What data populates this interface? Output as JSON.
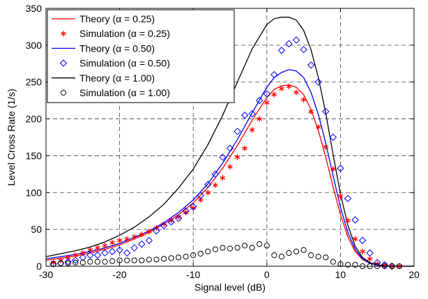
{
  "chart_data": {
    "type": "line",
    "title": "",
    "xlabel": "Signal level (dB)",
    "ylabel": "Level Cross Rate (1/s)",
    "xlim": [
      -30,
      20
    ],
    "ylim": [
      0,
      350
    ],
    "xticks": [
      -30,
      -20,
      -10,
      0,
      10,
      20
    ],
    "yticks": [
      0,
      50,
      100,
      150,
      200,
      250,
      300,
      350
    ],
    "grid": true,
    "legend_position": "top-left",
    "series": [
      {
        "name": "Theory (α = 0.25)",
        "kind": "line",
        "color": "#ff0000",
        "x": [
          -30,
          -28,
          -26,
          -24,
          -22,
          -20,
          -18,
          -16,
          -14,
          -12,
          -10,
          -8,
          -6,
          -4,
          -2,
          0,
          1,
          2,
          3,
          4,
          5,
          6,
          7,
          8,
          9,
          10,
          11,
          12,
          13,
          14,
          15,
          16,
          18,
          20
        ],
        "y": [
          8,
          11,
          14,
          18,
          23,
          29,
          37,
          46,
          57,
          70,
          86,
          107,
          133,
          164,
          198,
          229,
          240,
          245,
          246,
          243,
          233,
          213,
          184,
          148,
          108,
          70,
          40,
          20,
          9,
          4,
          1.5,
          0.5,
          0,
          0
        ]
      },
      {
        "name": "Simulation (α = 0.25)",
        "kind": "marker",
        "marker": "asterisk",
        "color": "#ff0000",
        "x": [
          -29,
          -28,
          -27,
          -26,
          -25,
          -24,
          -23,
          -22,
          -21,
          -20,
          -19,
          -18,
          -17,
          -16,
          -15,
          -14,
          -13,
          -12,
          -11,
          -10,
          -9,
          -8,
          -7,
          -6,
          -5,
          -4,
          -3,
          -2,
          -1,
          0,
          1,
          2,
          3,
          4,
          5,
          6,
          7,
          8,
          9,
          10,
          11,
          12,
          13,
          14,
          15,
          16,
          17,
          18
        ],
        "y": [
          5,
          8,
          12,
          15,
          18,
          22,
          25,
          28,
          32,
          35,
          37,
          40,
          43,
          47,
          52,
          57,
          62,
          67,
          73,
          79,
          90,
          100,
          110,
          120,
          135,
          148,
          160,
          185,
          200,
          222,
          233,
          241,
          244,
          236,
          226,
          210,
          189,
          162,
          132,
          95,
          62,
          37,
          20,
          10,
          3,
          1,
          0,
          0
        ]
      },
      {
        "name": "Theory (α = 0.50)",
        "kind": "line",
        "color": "#0000ff",
        "x": [
          -30,
          -28,
          -26,
          -24,
          -22,
          -20,
          -18,
          -16,
          -14,
          -12,
          -10,
          -8,
          -6,
          -4,
          -2,
          0,
          1,
          2,
          3,
          4,
          5,
          6,
          7,
          8,
          9,
          10,
          11,
          12,
          13,
          14,
          15,
          16,
          18,
          20
        ],
        "y": [
          10,
          13,
          16,
          20,
          25,
          31,
          39,
          48,
          59,
          73,
          90,
          112,
          140,
          172,
          208,
          243,
          256,
          263,
          267,
          265,
          256,
          236,
          206,
          167,
          123,
          80,
          46,
          23,
          10,
          4,
          1.5,
          0.5,
          0,
          0
        ]
      },
      {
        "name": "Simulation (α = 0.50)",
        "kind": "marker",
        "marker": "diamond",
        "color": "#0000ff",
        "x": [
          -29,
          -28,
          -27,
          -26,
          -25,
          -24,
          -23,
          -22,
          -21,
          -20,
          -19,
          -18,
          -17,
          -16,
          -15,
          -14,
          -13,
          -12,
          -11,
          -10,
          -9,
          -8,
          -7,
          -6,
          -5,
          -4,
          -3,
          -2,
          -1,
          0,
          1,
          2,
          3,
          4,
          5,
          6,
          7,
          8,
          9,
          10,
          11,
          12,
          13,
          14,
          15,
          16,
          17
        ],
        "y": [
          3,
          4,
          6,
          8,
          12,
          15,
          15,
          18,
          20,
          22,
          18,
          25,
          30,
          35,
          48,
          55,
          60,
          65,
          75,
          81,
          96,
          111,
          125,
          148,
          160,
          183,
          205,
          207,
          225,
          234,
          260,
          293,
          302,
          307,
          294,
          273,
          250,
          210,
          175,
          133,
          92,
          63,
          35,
          18,
          5,
          2,
          0
        ]
      },
      {
        "name": "Theory (α = 1.00)",
        "kind": "line",
        "color": "#000000",
        "x": [
          -30,
          -28,
          -26,
          -24,
          -22,
          -20,
          -18,
          -16,
          -14,
          -12,
          -10,
          -8,
          -6,
          -4,
          -2,
          0,
          1,
          2,
          3,
          4,
          5,
          6,
          7,
          8,
          9,
          10,
          11,
          12,
          13,
          14,
          15,
          16,
          18,
          20
        ],
        "y": [
          13,
          17,
          21,
          26,
          33,
          42,
          53,
          67,
          84,
          106,
          132,
          165,
          205,
          250,
          295,
          328,
          336,
          338,
          338,
          334,
          320,
          294,
          256,
          208,
          152,
          98,
          56,
          27,
          12,
          5,
          2,
          0.5,
          0,
          0
        ]
      },
      {
        "name": "Simulation (α = 1.00)",
        "kind": "marker",
        "marker": "circle",
        "color": "#000000",
        "x": [
          -29,
          -28,
          -27,
          -26,
          -25,
          -24,
          -23,
          -22,
          -21,
          -20,
          -19,
          -18,
          -17,
          -16,
          -15,
          -14,
          -13,
          -12,
          -11,
          -10,
          -9,
          -8,
          -7,
          -6,
          -5,
          -4,
          -3,
          -2,
          -1,
          0,
          1,
          2,
          3,
          4,
          5,
          6,
          7,
          8,
          9,
          10,
          11,
          12,
          13,
          14,
          15,
          16,
          17,
          18
        ],
        "y": [
          3,
          4,
          4,
          5,
          5,
          6,
          6,
          6,
          7,
          8,
          8,
          8,
          8,
          9,
          9,
          10,
          11,
          12,
          13,
          15,
          17,
          20,
          23,
          25,
          24,
          25,
          28,
          25,
          30,
          28,
          15,
          13,
          18,
          20,
          22,
          15,
          13,
          12,
          6,
          3,
          2,
          2,
          0,
          0,
          0,
          0,
          0,
          0
        ]
      }
    ]
  }
}
